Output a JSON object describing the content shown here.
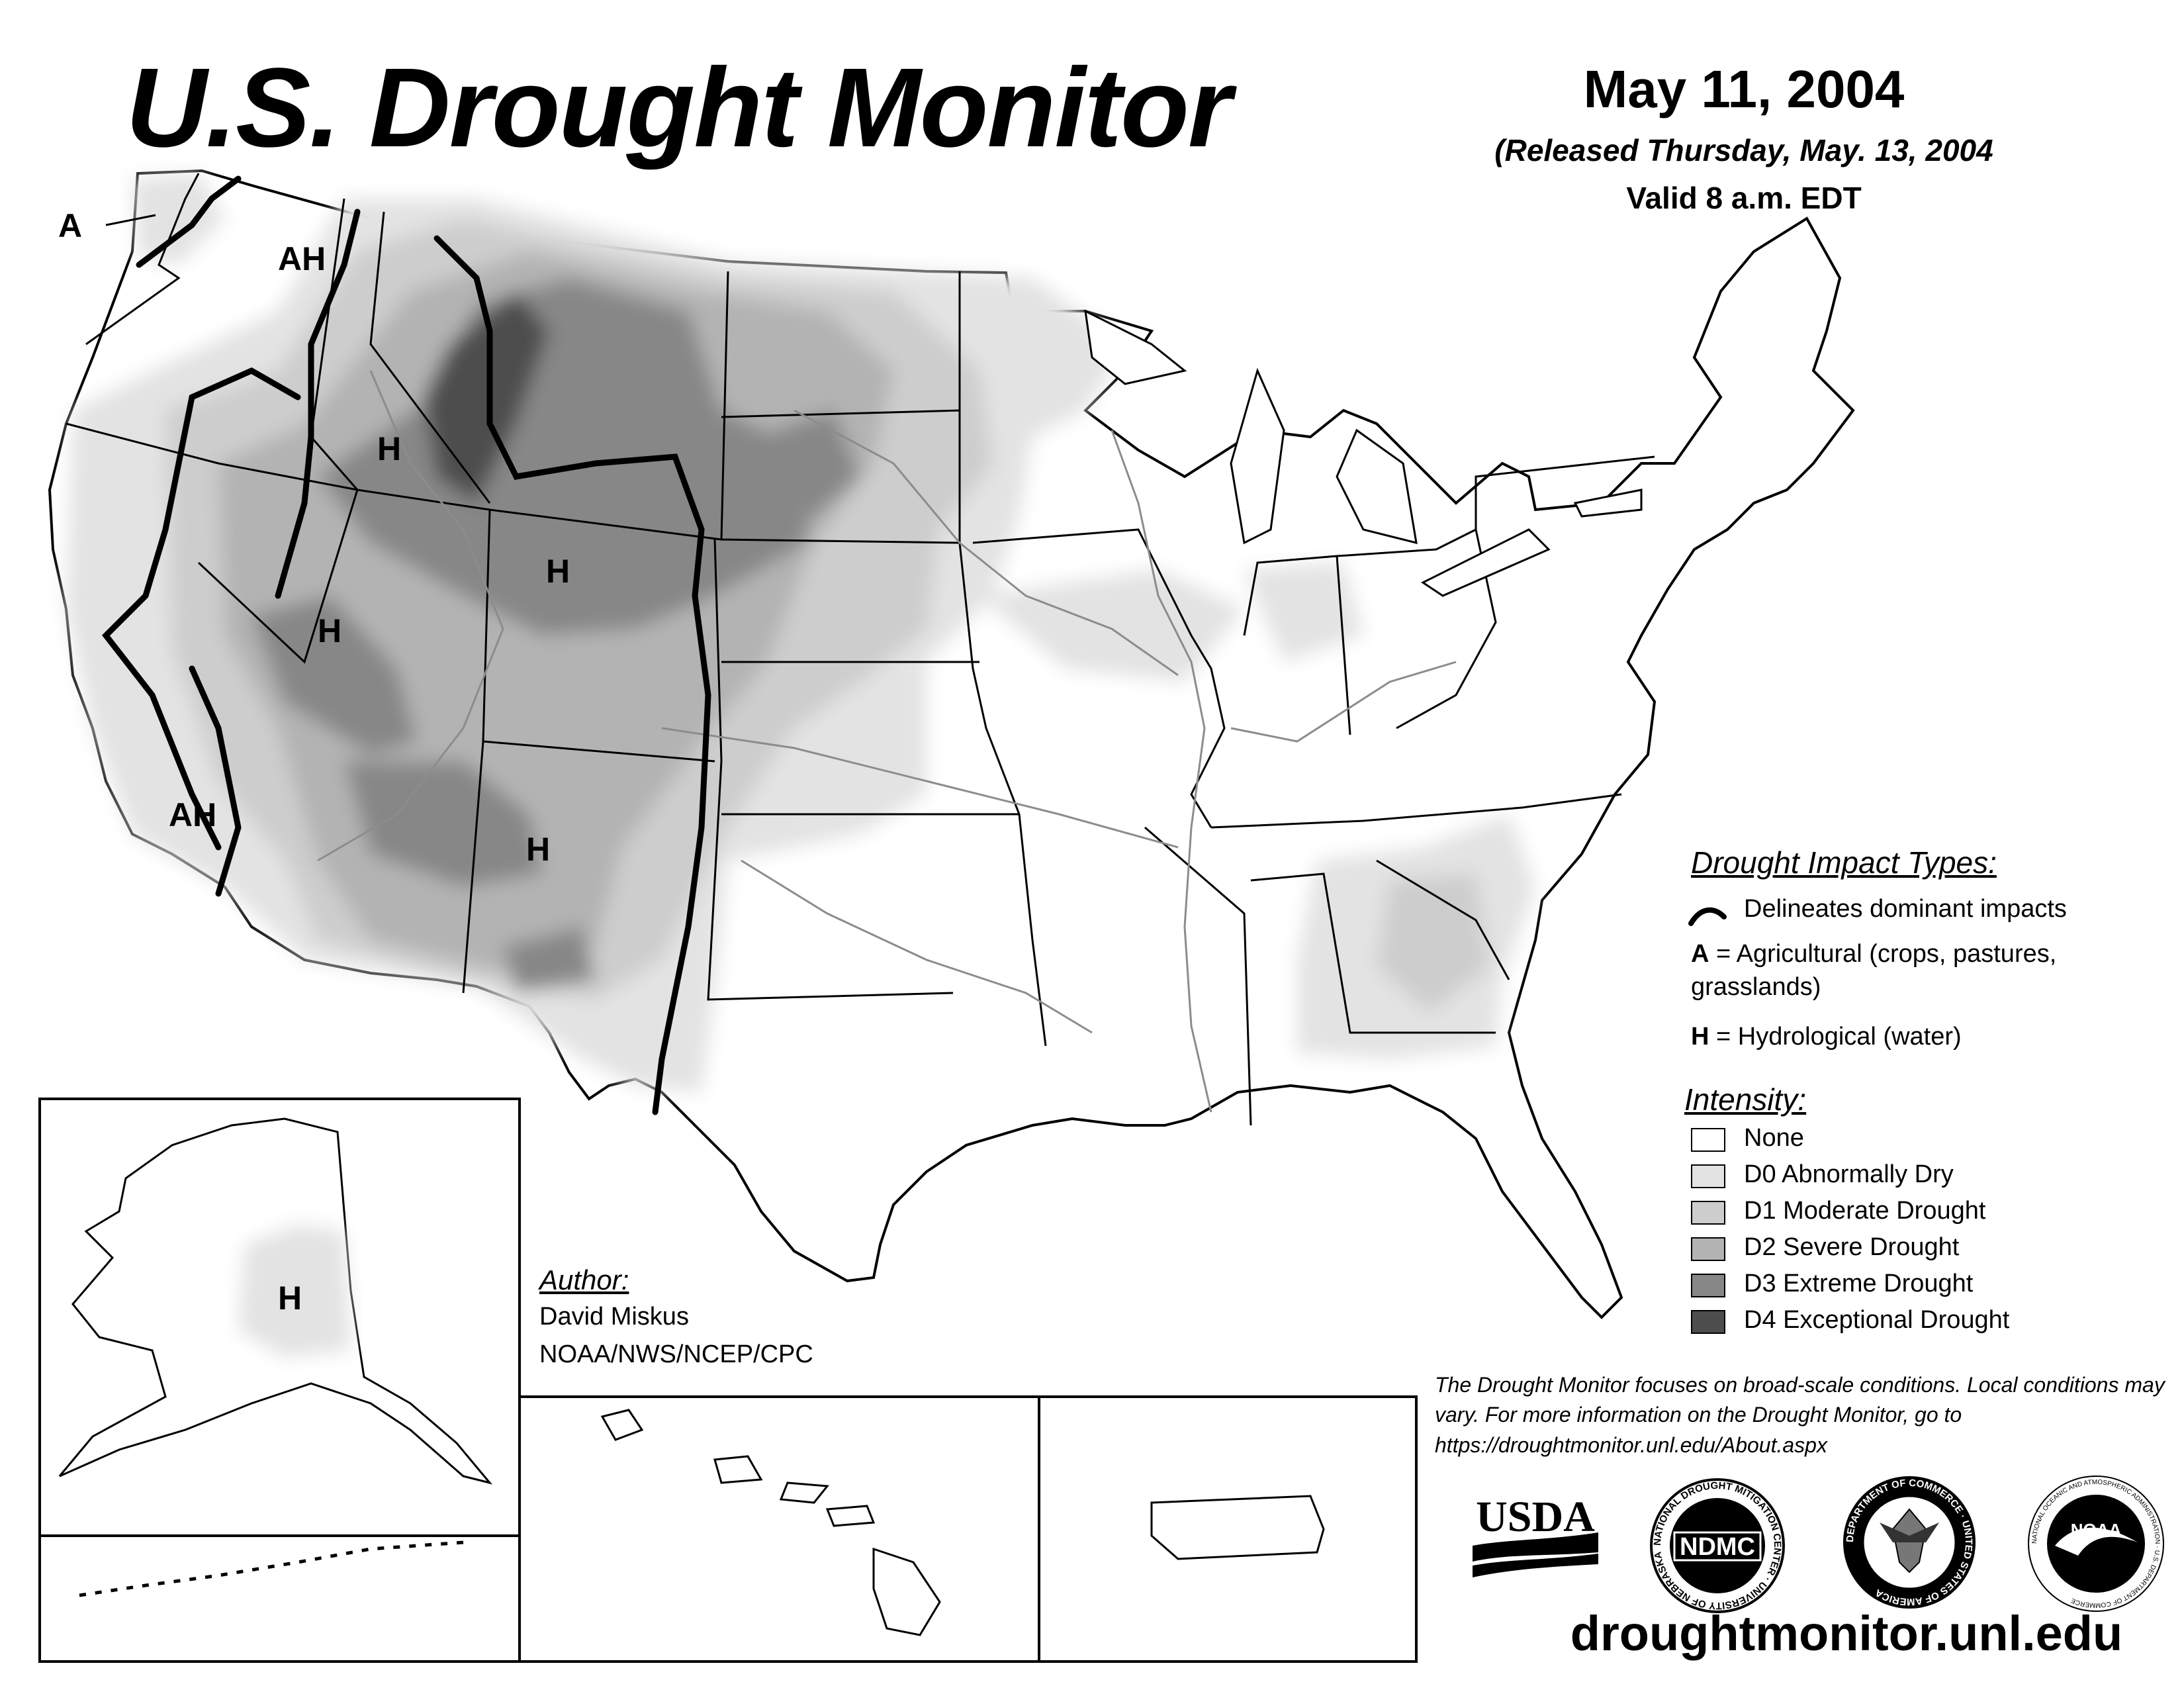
{
  "title": "U.S. Drought Monitor",
  "date": "May 11, 2004",
  "released": "(Released Thursday, May. 13, 2004",
  "valid": "Valid 8 a.m. EDT",
  "map_labels": {
    "nw_a": "A",
    "wa_ah": "AH",
    "id_h": "H",
    "wy_h": "H",
    "nv_h": "H",
    "ca_ah": "AH",
    "nm_h": "H",
    "ak_h": "H"
  },
  "impact_legend": {
    "heading": "Drought Impact Types:",
    "line_label": "Delineates dominant impacts",
    "agri_key": "A",
    "agri_text": " = Agricultural (crops, pastures,",
    "agri_text2": "grasslands)",
    "hydro_key": "H",
    "hydro_text": " = Hydrological (water)"
  },
  "intensity_legend": {
    "heading": "Intensity:",
    "items": [
      {
        "label": "None",
        "color": "#ffffff"
      },
      {
        "label": "D0 Abnormally Dry",
        "color": "#e3e3e3"
      },
      {
        "label": "D1 Moderate Drought",
        "color": "#cdcdcd"
      },
      {
        "label": "D2 Severe Drought",
        "color": "#b3b3b3"
      },
      {
        "label": "D3 Extreme Drought",
        "color": "#878787"
      },
      {
        "label": "D4 Exceptional Drought",
        "color": "#4d4d4d"
      }
    ]
  },
  "author": {
    "heading": "Author:",
    "name": "David Miskus",
    "org": "NOAA/NWS/NCEP/CPC"
  },
  "disclaimer": "The Drought Monitor focuses on broad-scale conditions. Local conditions may vary. For more information on the Drought Monitor, go to https://droughtmonitor.unl.edu/About.aspx",
  "logos": {
    "usda": "USDA",
    "ndmc": "NDMC",
    "ndmc_ring": "NATIONAL DROUGHT MITIGATION CENTER · UNIVERSITY OF NEBRASKA",
    "doc_ring": "DEPARTMENT OF COMMERCE · UNITED STATES OF AMERICA",
    "noaa": "NOAA",
    "noaa_ring": "NATIONAL OCEANIC AND ATMOSPHERIC ADMINISTRATION · U.S. DEPARTMENT OF COMMERCE"
  },
  "url": "droughtmonitor.unl.edu"
}
